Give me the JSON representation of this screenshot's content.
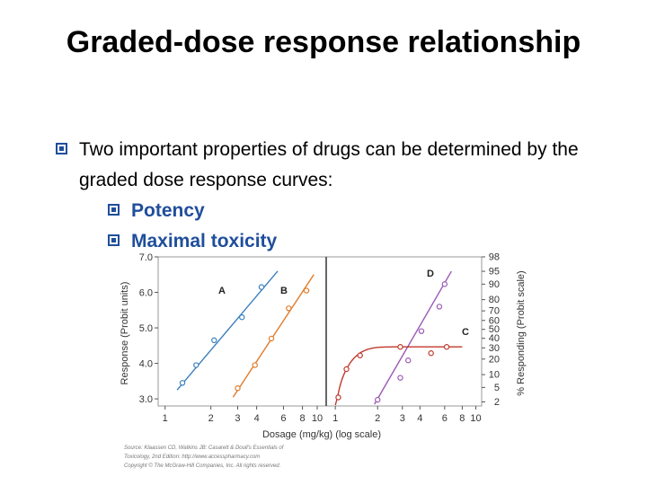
{
  "slide": {
    "title": "Graded-dose response relationship",
    "bullet_main": "Two important properties of drugs can be determined by the graded dose response curves:",
    "sub_bullets": [
      "Potency",
      "Maximal toxicity"
    ]
  },
  "chart_data": {
    "type": "scatter",
    "xlabel": "Dosage (mg/kg) (log scale)",
    "ylabel_left": "Response (Probit units)",
    "ylabel_right": "% Responding (Probit scale)",
    "source": [
      "Source: Klaassen CD, Watkins JB: Casarett & Doull's Essentials of",
      "Toxicology, 2nd Edition: http://www.accesspharmacy.com",
      "Copyright © The McGraw-Hill Companies, Inc. All rights reserved."
    ],
    "panels": [
      {
        "x_scale": "log",
        "xlim": [
          0.9,
          11
        ],
        "ylim": [
          2.8,
          7.0
        ],
        "x_ticks": [
          1,
          2,
          3,
          4,
          6,
          8,
          10
        ],
        "y_ticks": [
          3.0,
          4.0,
          5.0,
          6.0,
          7.0
        ],
        "y_tick_labels": [
          "3.0",
          "4.0",
          "5.0",
          "6.0",
          "7.0"
        ],
        "series": [
          {
            "name": "A",
            "color": "#3a7fbf",
            "points": [
              [
                1.3,
                3.45
              ],
              [
                1.6,
                3.95
              ],
              [
                2.1,
                4.65
              ],
              [
                3.2,
                5.3
              ],
              [
                4.3,
                6.15
              ]
            ],
            "fit": [
              [
                1.2,
                3.25
              ],
              [
                5.5,
                6.6
              ]
            ]
          },
          {
            "name": "B",
            "color": "#e07b2a",
            "points": [
              [
                3.0,
                3.3
              ],
              [
                3.9,
                3.95
              ],
              [
                5.0,
                4.7
              ],
              [
                6.5,
                5.55
              ],
              [
                8.5,
                6.05
              ]
            ],
            "fit": [
              [
                2.8,
                3.05
              ],
              [
                9.5,
                6.5
              ]
            ]
          }
        ]
      },
      {
        "x_scale": "log",
        "xlim": [
          0.9,
          11
        ],
        "ylim": [
          1.5,
          98
        ],
        "x_ticks": [
          1,
          2,
          3,
          4,
          6,
          8,
          10
        ],
        "y_ticks": [
          2,
          5,
          10,
          20,
          30,
          40,
          50,
          60,
          70,
          80,
          90,
          95,
          98
        ],
        "series": [
          {
            "name": "D",
            "color": "#9b59b6",
            "points": [
              [
                2.0,
                2.3
              ],
              [
                2.9,
                8.5
              ],
              [
                3.3,
                19
              ],
              [
                4.1,
                48
              ],
              [
                5.5,
                74
              ],
              [
                6.0,
                90
              ]
            ],
            "fit": [
              [
                1.9,
                1.7
              ],
              [
                6.7,
                95
              ]
            ]
          },
          {
            "name": "C",
            "color": "#c0392b",
            "points": [
              [
                1.05,
                2.7
              ],
              [
                1.2,
                13
              ],
              [
                1.5,
                23
              ],
              [
                2.9,
                31
              ],
              [
                4.8,
                25
              ],
              [
                6.2,
                31
              ]
            ],
            "fit_type": "plateau",
            "plateau": 31
          }
        ]
      }
    ]
  }
}
